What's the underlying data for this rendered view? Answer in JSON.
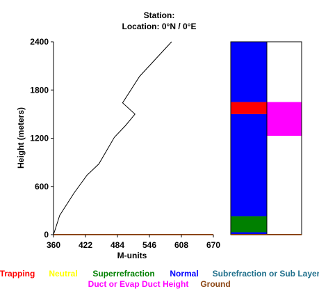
{
  "header": {
    "station": "Station:",
    "location": "Location:   0°N /   0°E"
  },
  "chart_data": {
    "type": "line",
    "xlabel": "M-units",
    "ylabel": "Height (meters)",
    "xlim": [
      360,
      670
    ],
    "ylim": [
      0,
      2400
    ],
    "x_ticks": [
      "360",
      "422",
      "484",
      "546",
      "608",
      "670"
    ],
    "y_ticks": [
      "0",
      "600",
      "1200",
      "1800",
      "2400"
    ],
    "series": [
      {
        "values": [
          {
            "x": 360,
            "y": 0
          },
          {
            "x": 372,
            "y": 240
          },
          {
            "x": 400,
            "y": 520
          },
          {
            "x": 425,
            "y": 740
          },
          {
            "x": 448,
            "y": 880
          },
          {
            "x": 478,
            "y": 1210
          },
          {
            "x": 500,
            "y": 1360
          },
          {
            "x": 518,
            "y": 1500
          },
          {
            "x": 494,
            "y": 1640
          },
          {
            "x": 527,
            "y": 1970
          },
          {
            "x": 589,
            "y": 2400
          }
        ]
      }
    ],
    "ground_color": "#8B4513",
    "layer_bars": {
      "ylim": [
        0,
        2400
      ],
      "left_column": [
        {
          "from": 0,
          "to": 30,
          "color": "#0000ff"
        },
        {
          "from": 30,
          "to": 230,
          "color": "#008000"
        },
        {
          "from": 230,
          "to": 1500,
          "color": "#0000ff"
        },
        {
          "from": 1500,
          "to": 1650,
          "color": "#ff0000"
        },
        {
          "from": 1650,
          "to": 2400,
          "color": "#0000ff"
        }
      ],
      "right_column": [
        {
          "from": 1230,
          "to": 1650,
          "color": "#ff00ff"
        }
      ]
    },
    "legend": [
      {
        "label": "Trapping",
        "color": "#ff0000"
      },
      {
        "label": "Neutral",
        "color": "#ffff00"
      },
      {
        "label": "Superrefraction",
        "color": "#008000"
      },
      {
        "label": "Normal",
        "color": "#0000ff"
      },
      {
        "label": "Subrefraction or Sub Layer",
        "color": "#1f6f8b"
      },
      {
        "label": "Duct or Evap Duct Height",
        "color": "#ff00ff"
      },
      {
        "label": "Ground",
        "color": "#8B4513"
      }
    ]
  }
}
